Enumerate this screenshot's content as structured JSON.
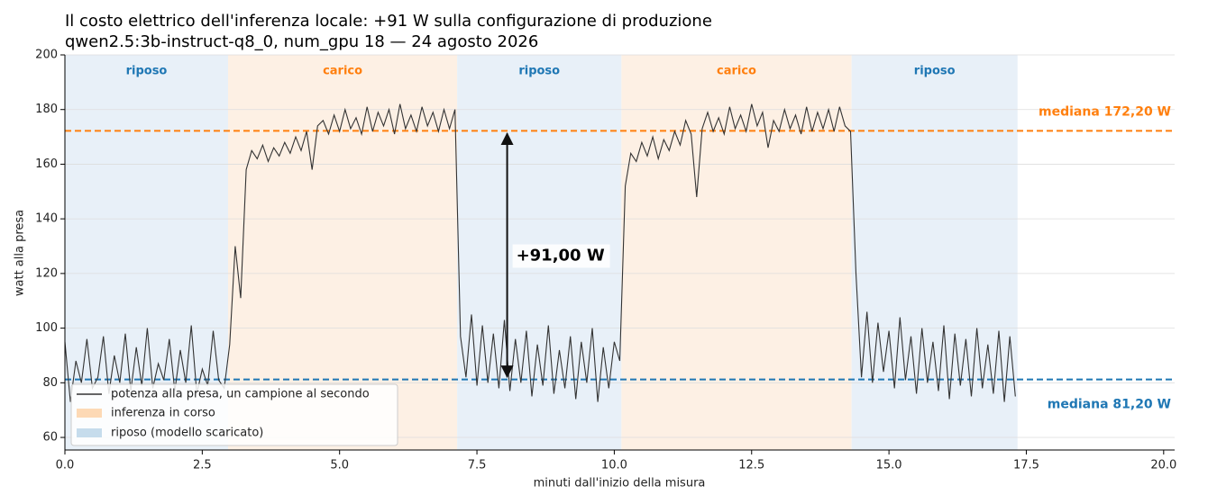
{
  "chart_data": {
    "type": "line",
    "title": "Il costo elettrico dell'inferenza locale: +91 W sulla configurazione di produzione",
    "subtitle": "qwen2.5:3b-instruct-q8_0, num_gpu 18 — 24 agosto 2026",
    "xlabel": "minuti dall'inizio della misura",
    "ylabel": "watt alla presa",
    "xlim": [
      0,
      20.2
    ],
    "ylim": [
      55.4,
      200
    ],
    "xticks": [
      {
        "value": 0,
        "label": "0.0"
      },
      2.5,
      {
        "value": 5,
        "label": "5.0"
      },
      7.5,
      {
        "value": 10,
        "label": "10.0"
      },
      12.5,
      {
        "value": 15,
        "label": "15.0"
      },
      17.5,
      {
        "value": 20,
        "label": "20.0"
      }
    ],
    "yticks": [
      60,
      80,
      100,
      120,
      140,
      160,
      180,
      200
    ],
    "grid": true,
    "x": [
      0,
      0.1,
      0.2,
      0.3,
      0.4,
      0.5,
      0.6,
      0.7,
      0.8,
      0.9,
      1,
      1.1,
      1.2,
      1.3,
      1.4,
      1.5,
      1.6,
      1.7,
      1.8,
      1.9,
      2,
      2.1,
      2.2,
      2.3,
      2.4,
      2.5,
      2.6,
      2.7,
      2.8,
      2.9,
      3,
      3.1,
      3.2,
      3.3,
      3.4,
      3.5,
      3.6,
      3.7,
      3.8,
      3.9,
      4,
      4.1,
      4.2,
      4.3,
      4.4,
      4.5,
      4.6,
      4.7,
      4.8,
      4.9,
      5,
      5.1,
      5.2,
      5.3,
      5.4,
      5.5,
      5.6,
      5.7,
      5.8,
      5.9,
      6,
      6.1,
      6.2,
      6.3,
      6.4,
      6.5,
      6.6,
      6.7,
      6.8,
      6.9,
      7,
      7.1,
      7.2,
      7.3,
      7.4,
      7.5,
      7.6,
      7.7,
      7.8,
      7.9,
      8,
      8.1,
      8.2,
      8.3,
      8.4,
      8.5,
      8.6,
      8.7,
      8.8,
      8.9,
      9,
      9.1,
      9.2,
      9.3,
      9.4,
      9.5,
      9.6,
      9.7,
      9.8,
      9.9,
      10,
      10.1,
      10.2,
      10.3,
      10.4,
      10.5,
      10.6,
      10.7,
      10.8,
      10.9,
      11,
      11.1,
      11.2,
      11.3,
      11.4,
      11.5,
      11.6,
      11.7,
      11.8,
      11.9,
      12,
      12.1,
      12.2,
      12.3,
      12.4,
      12.5,
      12.6,
      12.7,
      12.8,
      12.9,
      13,
      13.1,
      13.2,
      13.3,
      13.4,
      13.5,
      13.6,
      13.7,
      13.8,
      13.9,
      14,
      14.1,
      14.2,
      14.3,
      14.4,
      14.5,
      14.6,
      14.7,
      14.8,
      14.9,
      15,
      15.1,
      15.2,
      15.3,
      15.4,
      15.5,
      15.6,
      15.7,
      15.8,
      15.9,
      16,
      16.1,
      16.2,
      16.3,
      16.4,
      16.5,
      16.6,
      16.7,
      16.8,
      16.9,
      17,
      17.1,
      17.2,
      17.3
    ],
    "series": [
      {
        "name": "potenza alla presa, un campione al secondo",
        "color": "#333333",
        "values": [
          95,
          73,
          88,
          80,
          96,
          78,
          82,
          97,
          76,
          90,
          80,
          98,
          77,
          93,
          79,
          100,
          78,
          87,
          81,
          96,
          77,
          92,
          80,
          101,
          76,
          85,
          79,
          99,
          81,
          78,
          94,
          130,
          111,
          158,
          165,
          162,
          167,
          161,
          166,
          163,
          168,
          164,
          170,
          165,
          172,
          158,
          174,
          176,
          171,
          178,
          172,
          180,
          173,
          177,
          171,
          181,
          172,
          179,
          174,
          180,
          171,
          182,
          173,
          178,
          172,
          181,
          174,
          179,
          172,
          180,
          173,
          180,
          97,
          82,
          105,
          79,
          101,
          80,
          98,
          78,
          103,
          77,
          96,
          80,
          99,
          75,
          94,
          79,
          101,
          76,
          92,
          78,
          97,
          74,
          95,
          80,
          100,
          73,
          93,
          78,
          95,
          88,
          152,
          164,
          161,
          168,
          163,
          170,
          162,
          169,
          165,
          172,
          167,
          176,
          171,
          148,
          173,
          179,
          172,
          177,
          171,
          181,
          173,
          178,
          172,
          182,
          174,
          179,
          166,
          176,
          172,
          180,
          173,
          178,
          171,
          181,
          172,
          179,
          173,
          180,
          172,
          181,
          174,
          172,
          120,
          82,
          106,
          80,
          102,
          84,
          99,
          78,
          104,
          81,
          97,
          76,
          100,
          80,
          95,
          77,
          101,
          74,
          98,
          79,
          96,
          75,
          100,
          78,
          94,
          76,
          99,
          73,
          97,
          75
        ]
      }
    ],
    "spans": [
      {
        "label": "riposo",
        "start": 0,
        "end": 2.97,
        "color": "#e8f0f8",
        "text_color": "#1f77b4"
      },
      {
        "label": "carico",
        "start": 2.97,
        "end": 7.14,
        "color": "#fdf0e4",
        "text_color": "#ff7f0e"
      },
      {
        "label": "riposo",
        "start": 7.14,
        "end": 10.13,
        "color": "#e8f0f8",
        "text_color": "#1f77b4"
      },
      {
        "label": "carico",
        "start": 10.13,
        "end": 14.32,
        "color": "#fdf0e4",
        "text_color": "#ff7f0e"
      },
      {
        "label": "riposo",
        "start": 14.32,
        "end": 17.34,
        "color": "#e8f0f8",
        "text_color": "#1f77b4"
      }
    ],
    "medians": [
      {
        "value": 172.2,
        "label": "mediana 172,20 W",
        "color": "#ff7f0e"
      },
      {
        "value": 81.2,
        "label": "mediana 81,20 W",
        "color": "#1f77b4"
      }
    ],
    "annotation": {
      "text": "+91,00 W",
      "x": 8.05,
      "from": 81.2,
      "to": 172.2
    },
    "legend_patches": [
      {
        "label": "inferenza in corso",
        "color": "#fdd9b5"
      },
      {
        "label": "riposo (modello scaricato)",
        "color": "#c6dcec"
      }
    ],
    "legend": "lower left"
  }
}
